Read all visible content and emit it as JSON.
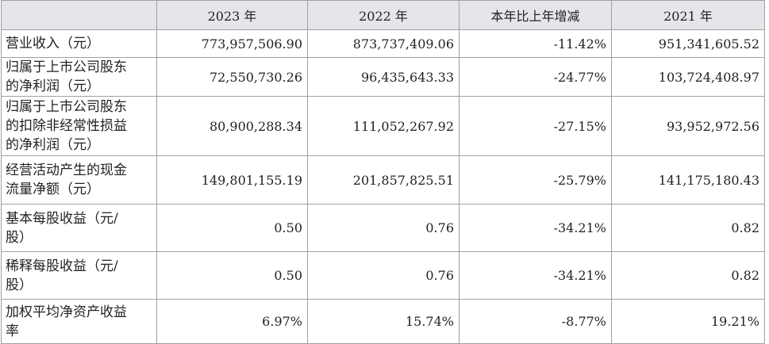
{
  "table": {
    "header": [
      "2023 年",
      "2022 年",
      "本年比上年增减",
      "2021 年"
    ],
    "rows": [
      [
        "营业收入（元）",
        "773,957,506.90",
        "873,737,409.06",
        "-11.42%",
        "951,341,605.52"
      ],
      [
        "归属于上市公司股东的净利润（元）",
        "72,550,730.26",
        "96,435,643.33",
        "-24.77%",
        "103,724,408.97"
      ],
      [
        "归属于上市公司股东的扣除非经常性损益的净利润（元）",
        "80,900,288.34",
        "111,052,267.92",
        "-27.15%",
        "93,952,972.56"
      ],
      [
        "经营活动产生的现金流量净额（元）",
        "149,801,155.19",
        "201,857,825.51",
        "-25.79%",
        "141,175,180.43"
      ],
      [
        "基本每股收益（元/股）",
        "0.50",
        "0.76",
        "-34.21%",
        "0.82"
      ],
      [
        "稀释每股收益（元/股）",
        "0.50",
        "0.76",
        "-34.21%",
        "0.82"
      ],
      [
        "加权平均净资产收益率",
        "6.97%",
        "15.74%",
        "-8.77%",
        "19.21%"
      ]
    ]
  }
}
